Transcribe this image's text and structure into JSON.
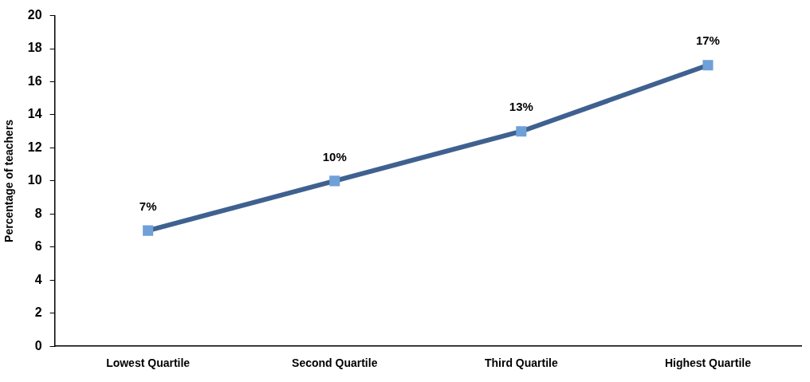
{
  "chart_data": {
    "type": "line",
    "ylabel": "Percentage of teachers",
    "categories": [
      "Lowest Quartile",
      "Second Quartile",
      "Third Quartile",
      "Highest Quartile"
    ],
    "series": [
      {
        "color": "#3f6190",
        "values": [
          7,
          10,
          13,
          17
        ],
        "value_labels": [
          "7%",
          "10%",
          "13%",
          "17%"
        ]
      }
    ],
    "ylim": [
      0,
      20
    ],
    "yticks": [
      0,
      2,
      4,
      6,
      8,
      10,
      12,
      14,
      16,
      18,
      20
    ],
    "grid": false,
    "legend": false,
    "marker": "square",
    "line_style": "solid"
  }
}
